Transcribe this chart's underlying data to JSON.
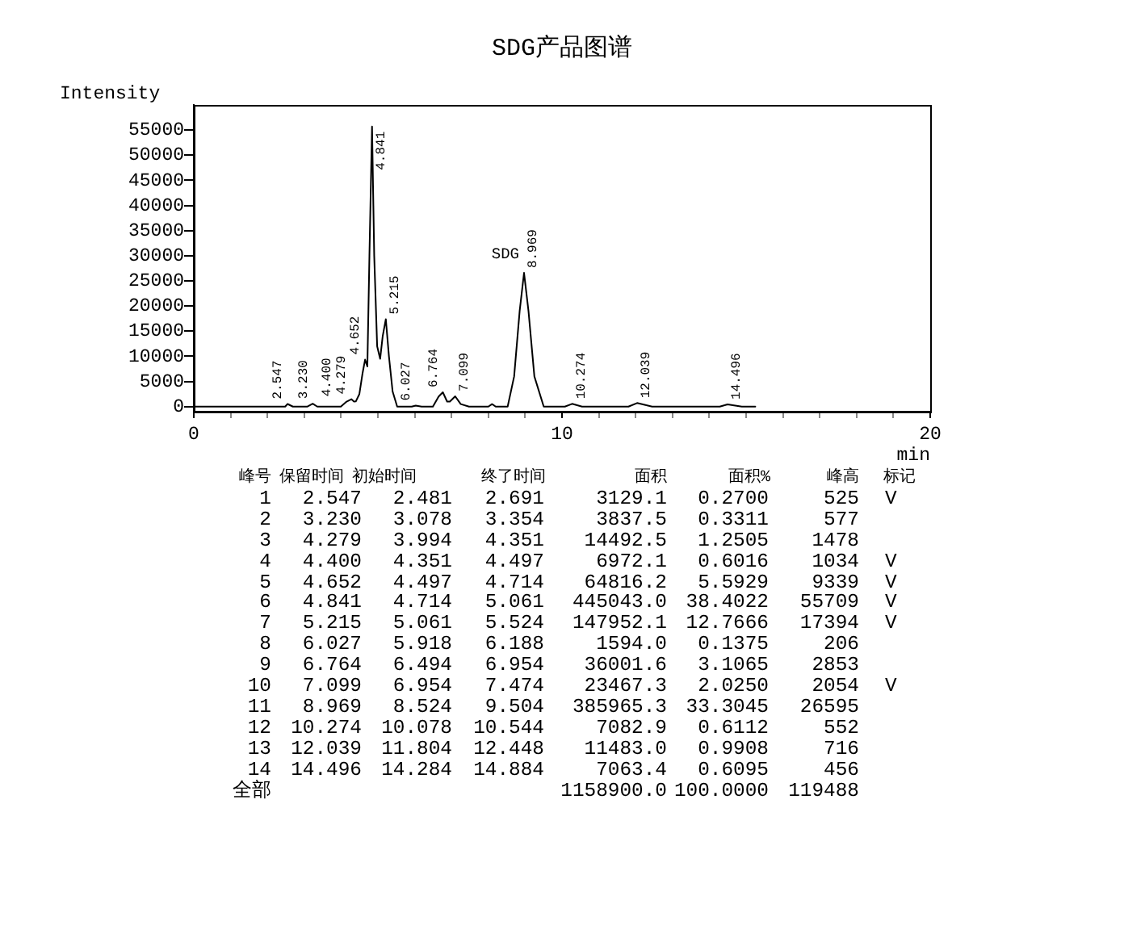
{
  "chart_data": {
    "type": "line",
    "title": "SDG产品图谱",
    "xlabel": "min",
    "ylabel": "Intensity",
    "x": [
      0,
      2.4,
      2.481,
      2.547,
      2.691,
      3.078,
      3.23,
      3.354,
      3.7,
      3.994,
      4.15,
      4.279,
      4.351,
      4.4,
      4.497,
      4.58,
      4.652,
      4.714,
      4.77,
      4.841,
      4.9,
      4.98,
      5.061,
      5.13,
      5.215,
      5.3,
      5.4,
      5.524,
      5.918,
      6.027,
      6.188,
      6.494,
      6.65,
      6.764,
      6.88,
      6.954,
      7.099,
      7.25,
      7.474,
      8.0,
      8.1,
      8.2,
      8.524,
      8.7,
      8.85,
      8.969,
      9.09,
      9.25,
      9.504,
      10.078,
      10.274,
      10.544,
      11.804,
      12.039,
      12.448,
      14.284,
      14.496,
      14.884,
      15.25
    ],
    "series": [
      {
        "color": "#000000",
        "values": [
          0,
          0,
          0,
          525,
          0,
          0,
          577,
          0,
          0,
          0,
          1000,
          1478,
          1000,
          1034,
          2500,
          6500,
          9339,
          8000,
          30000,
          55709,
          30000,
          12000,
          9500,
          14000,
          17394,
          10000,
          3000,
          0,
          0,
          206,
          0,
          0,
          2000,
          2853,
          1000,
          1000,
          2054,
          500,
          0,
          0,
          500,
          0,
          0,
          6000,
          19000,
          26595,
          19000,
          6000,
          0,
          0,
          552,
          0,
          0,
          716,
          0,
          0,
          456,
          0,
          0
        ]
      }
    ],
    "xlim": [
      0,
      20
    ],
    "ylim": [
      -1000,
      60000
    ],
    "xticks": [
      0,
      {
        "value": 1,
        "label": null
      },
      {
        "value": 2,
        "label": null
      },
      {
        "value": 3,
        "label": null
      },
      {
        "value": 4,
        "label": null
      },
      {
        "value": 5,
        "label": null
      },
      {
        "value": 6,
        "label": null
      },
      {
        "value": 7,
        "label": null
      },
      {
        "value": 8,
        "label": null
      },
      {
        "value": 9,
        "label": null
      },
      10,
      {
        "value": 11,
        "label": null
      },
      {
        "value": 12,
        "label": null
      },
      {
        "value": 13,
        "label": null
      },
      {
        "value": 14,
        "label": null
      },
      {
        "value": 15,
        "label": null
      },
      {
        "value": 16,
        "label": null
      },
      {
        "value": 17,
        "label": null
      },
      {
        "value": 18,
        "label": null
      },
      {
        "value": 19,
        "label": null
      },
      20
    ],
    "yticks": [
      0,
      5000,
      10000,
      15000,
      20000,
      25000,
      30000,
      35000,
      40000,
      45000,
      50000,
      55000
    ],
    "annotations": [
      {
        "text": "2.547",
        "x": 2.547,
        "y": 525
      },
      {
        "text": "3.230",
        "x": 3.23,
        "y": 577
      },
      {
        "text": "4.279",
        "x": 4.279,
        "y": 1478
      },
      {
        "text": "4.400",
        "x": 4.4,
        "y": 1034
      },
      {
        "text": "4.652",
        "x": 4.652,
        "y": 9339
      },
      {
        "text": "4.841",
        "x": 4.841,
        "y": 55709
      },
      {
        "text": "5.215",
        "x": 5.215,
        "y": 17394
      },
      {
        "text": "6.027",
        "x": 6.027,
        "y": 206
      },
      {
        "text": "6.764",
        "x": 6.764,
        "y": 2853
      },
      {
        "text": "7.099",
        "x": 7.099,
        "y": 2054
      },
      {
        "text": "8.969",
        "x": 8.969,
        "y": 26595
      },
      {
        "text": "SDG",
        "x": 8.969,
        "y": 26595
      },
      {
        "text": "10.274",
        "x": 10.274,
        "y": 552
      },
      {
        "text": "12.039",
        "x": 12.039,
        "y": 716
      },
      {
        "text": "14.496",
        "x": 14.496,
        "y": 456
      },
      "峰号 保留时间 初始时间 终了时间 面积 面积% 峰高 标记",
      "1 2.547 2.481 2.691 3129.1 0.2700 525 V",
      "2 3.230 3.078 3.354 3837.5 0.3311 577",
      "3 4.279 3.994 4.351 14492.5 1.2505 1478",
      "4 4.400 4.351 4.497 6972.1 0.6016 1034 V",
      "5 4.652 4.497 4.714 64816.2 5.5929 9339 V",
      "6 4.841 4.714 5.061 445043.0 38.4022 55709 V",
      "7 5.215 5.061 5.524 147952.1 12.7666 17394 V",
      "8 6.027 5.918 6.188 1594.0 0.1375 206",
      "9 6.764 6.494 6.954 36001.6 3.1065 2853",
      "10 7.099 6.954 7.474 23467.3 2.0250 2054 V",
      "11 8.969 8.524 9.504 385965.3 33.3045 26595",
      "12 10.274 10.078 10.544 7082.9 0.6112 552",
      "13 12.039 11.804 12.448 11483.0 0.9908 716",
      "14 14.496 14.284 14.884 7063.4 0.6095 456",
      "全部 1158900.0 100.0000 119488"
    ]
  }
}
